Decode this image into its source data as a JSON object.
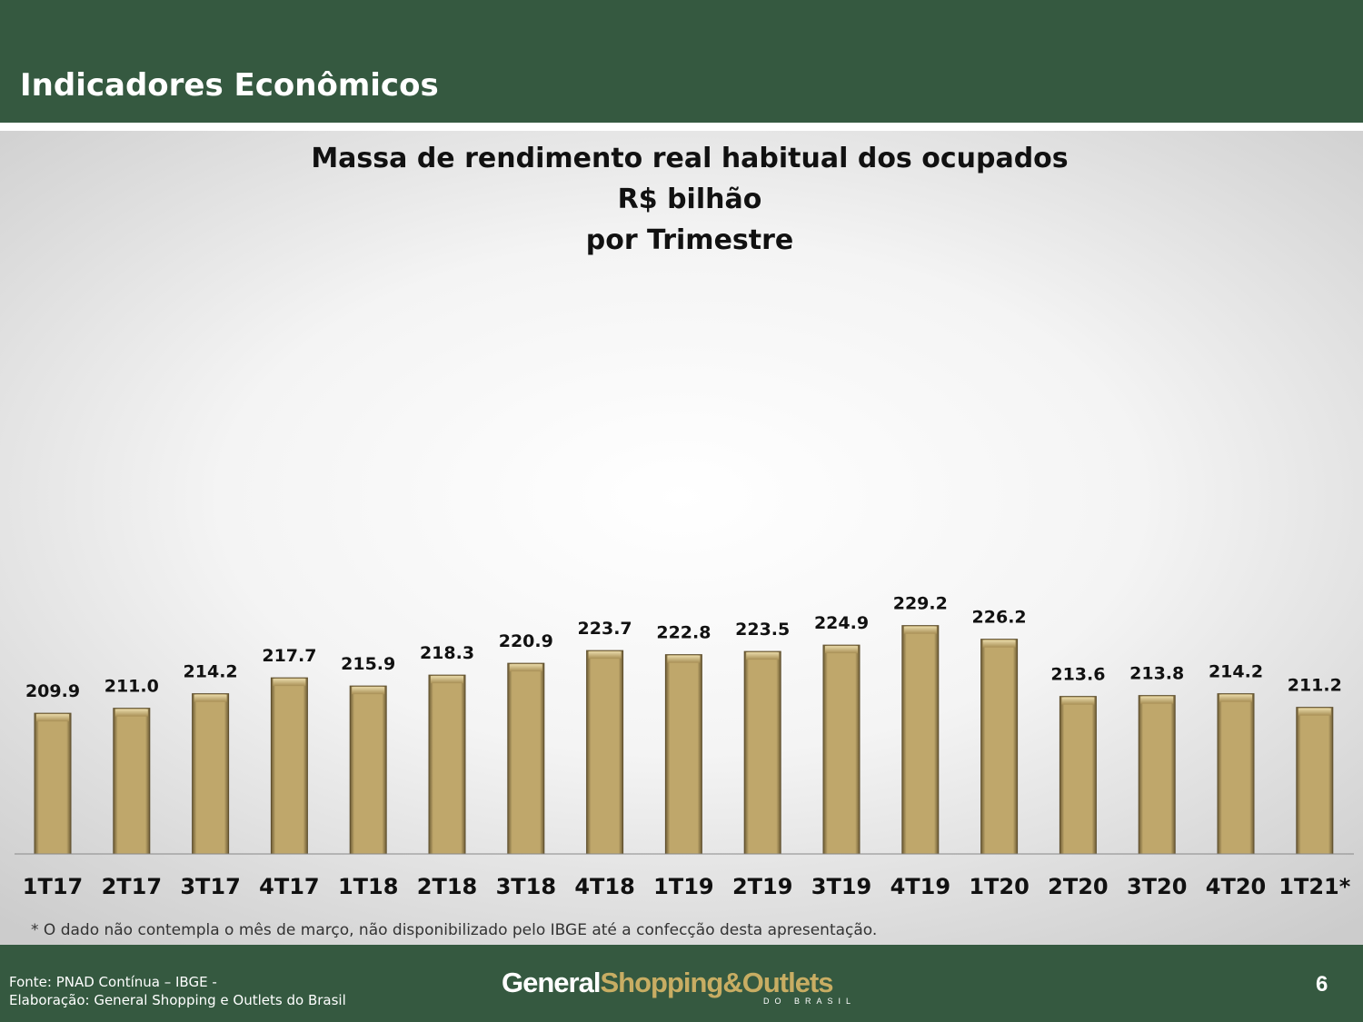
{
  "header": {
    "title": "Indicadores Econômicos"
  },
  "chart_data": {
    "type": "bar",
    "title": [
      "Massa de rendimento real habitual dos ocupados",
      "R$ bilhão",
      "por Trimestre"
    ],
    "categories": [
      "1T17",
      "2T17",
      "3T17",
      "4T17",
      "1T18",
      "2T18",
      "3T18",
      "4T18",
      "1T19",
      "2T19",
      "3T19",
      "4T19",
      "1T20",
      "2T20",
      "3T20",
      "4T20",
      "1T21*"
    ],
    "values": [
      209.9,
      211.0,
      214.2,
      217.7,
      215.9,
      218.3,
      220.9,
      223.7,
      222.8,
      223.5,
      224.9,
      229.2,
      226.2,
      213.6,
      213.8,
      214.2,
      211.2
    ],
    "data_labels": [
      "209.9",
      "211.0",
      "214.2",
      "217.7",
      "215.9",
      "218.3",
      "220.9",
      "223.7",
      "222.8",
      "223.5",
      "224.9",
      "229.2",
      "226.2",
      "213.6",
      "213.8",
      "214.2",
      "211.2"
    ],
    "xlabel": "",
    "ylabel": "",
    "grid": false,
    "legend": "none",
    "bar_color": "#bfa76b"
  },
  "footnote": "* O dado não contempla o mês de março, não disponibilizado pelo IBGE até a confecção desta apresentação.",
  "footer": {
    "source_line1": "Fonte: PNAD Contínua – IBGE -",
    "source_line2": "Elaboração: General Shopping e Outlets do Brasil",
    "logo_part1": "General",
    "logo_part2": "Shopping&Outlets",
    "logo_sub": "DO BRASIL",
    "page_number": "6"
  }
}
